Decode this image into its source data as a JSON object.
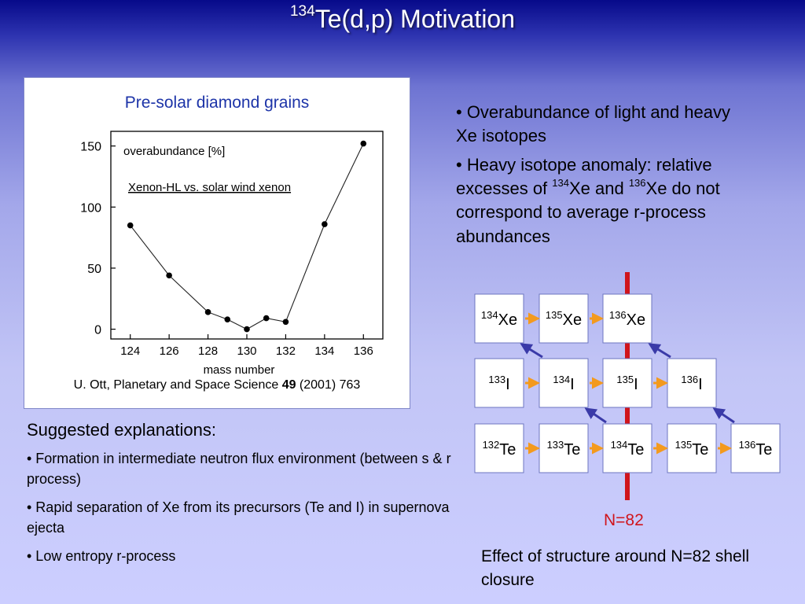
{
  "slide": {
    "title_sup": "134",
    "title_main": "Te(d,p) Motivation"
  },
  "figure": {
    "title": "Pre-solar diamond grains",
    "caption_pre": "U. Ott, Planetary and Space Science ",
    "caption_bold": "49",
    "caption_post": " (2001) 763"
  },
  "chart_data": {
    "type": "line",
    "title": "",
    "inner_label_1": "overabundance [%]",
    "inner_label_2": "Xenon-HL vs. solar wind xenon",
    "xlabel": "mass number",
    "ylabel": "",
    "x": [
      124,
      126,
      128,
      129,
      130,
      131,
      132,
      134,
      136
    ],
    "y": [
      85,
      44,
      14,
      8,
      0,
      9,
      6,
      86,
      152
    ],
    "xticks": [
      124,
      126,
      128,
      130,
      132,
      134,
      136
    ],
    "yticks": [
      0,
      50,
      100,
      150
    ],
    "xlim": [
      123,
      137
    ],
    "ylim": [
      -8,
      162
    ],
    "grid": false,
    "marker": "filled-circle"
  },
  "right_bullets": {
    "b1": "• Overabundance of light and heavy Xe isotopes",
    "b2_pre": "• Heavy isotope anomaly: relative excesses of ",
    "b2_sup1": "134",
    "b2_mid": "Xe and ",
    "b2_sup2": "136",
    "b2_post": "Xe do not correspond to average r-process abundances"
  },
  "suggested": {
    "heading": "Suggested explanations:",
    "items": [
      "• Formation in intermediate neutron flux environment (between s & r process)",
      "• Rapid separation of Xe from its precursors (Te and I) in supernova ejecta",
      "• Low entropy r-process"
    ]
  },
  "nuclei": {
    "xe": [
      {
        "a": "134",
        "el": "Xe"
      },
      {
        "a": "135",
        "el": "Xe"
      },
      {
        "a": "136",
        "el": "Xe"
      }
    ],
    "i": [
      {
        "a": "133",
        "el": "I"
      },
      {
        "a": "134",
        "el": "I"
      },
      {
        "a": "135",
        "el": "I"
      },
      {
        "a": "136",
        "el": "I"
      }
    ],
    "te": [
      {
        "a": "132",
        "el": "Te"
      },
      {
        "a": "133",
        "el": "Te"
      },
      {
        "a": "134",
        "el": "Te"
      },
      {
        "a": "135",
        "el": "Te"
      },
      {
        "a": "136",
        "el": "Te"
      }
    ],
    "shell_label": "N=82",
    "colors": {
      "capture_arrow": "#f39a1e",
      "decay_arrow": "#3a3aa8",
      "shell_line": "#d0151c"
    }
  },
  "effect_text": "Effect of structure around N=82 shell closure"
}
